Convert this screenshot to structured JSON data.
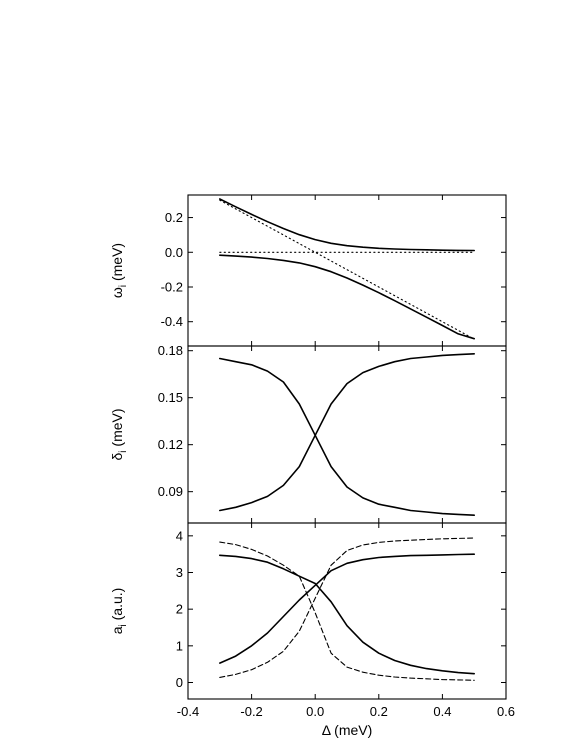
{
  "chart_data": [
    {
      "type": "line",
      "panel": "top",
      "title": "",
      "ylabel": {
        "main": "ω",
        "sub": "i",
        "rest": " (meV)"
      },
      "xlim": [
        -0.4,
        0.6
      ],
      "ylim": [
        -0.54,
        0.33
      ],
      "yticks": [
        0.2,
        0.0,
        -0.2,
        -0.4
      ],
      "ytick_labels": [
        "0.2",
        "0.0",
        "-0.2",
        "-0.4"
      ],
      "series": [
        {
          "style": "solid",
          "x": [
            -0.3,
            -0.25,
            -0.2,
            -0.15,
            -0.1,
            -0.05,
            0,
            0.05,
            0.1,
            0.15,
            0.2,
            0.25,
            0.3,
            0.35,
            0.4,
            0.45,
            0.5
          ],
          "y": [
            0.307,
            0.262,
            0.218,
            0.176,
            0.137,
            0.101,
            0.073,
            0.052,
            0.038,
            0.029,
            0.023,
            0.019,
            0.016,
            0.014,
            0.012,
            0.011,
            0.01
          ]
        },
        {
          "style": "solid",
          "x": [
            -0.3,
            -0.25,
            -0.2,
            -0.15,
            -0.1,
            -0.05,
            0,
            0.05,
            0.1,
            0.15,
            0.2,
            0.25,
            0.3,
            0.35,
            0.4,
            0.45,
            0.5
          ],
          "y": [
            -0.017,
            -0.022,
            -0.028,
            -0.036,
            -0.047,
            -0.061,
            -0.083,
            -0.112,
            -0.148,
            -0.189,
            -0.233,
            -0.279,
            -0.326,
            -0.374,
            -0.422,
            -0.47,
            -0.498
          ]
        },
        {
          "style": "dotted",
          "x": [
            -0.3,
            0.5
          ],
          "y": [
            0.3,
            -0.5
          ]
        },
        {
          "style": "dotted",
          "x": [
            -0.3,
            0.5
          ],
          "y": [
            0.0,
            0.0
          ]
        }
      ]
    },
    {
      "type": "line",
      "panel": "middle",
      "title": "",
      "ylabel": {
        "main": "δ",
        "sub": "i",
        "rest": " (meV)"
      },
      "xlim": [
        -0.4,
        0.6
      ],
      "ylim": [
        0.07,
        0.183
      ],
      "yticks": [
        0.18,
        0.15,
        0.12,
        0.09
      ],
      "ytick_labels": [
        "0.18",
        "0.15",
        "0.12",
        "0.09"
      ],
      "series": [
        {
          "style": "solid",
          "x": [
            -0.3,
            -0.25,
            -0.2,
            -0.15,
            -0.1,
            -0.05,
            0,
            0.05,
            0.1,
            0.15,
            0.2,
            0.25,
            0.3,
            0.35,
            0.4,
            0.45,
            0.5
          ],
          "y": [
            0.175,
            0.173,
            0.171,
            0.167,
            0.16,
            0.146,
            0.126,
            0.106,
            0.093,
            0.086,
            0.082,
            0.08,
            0.078,
            0.077,
            0.076,
            0.0755,
            0.075
          ]
        },
        {
          "style": "solid",
          "x": [
            -0.3,
            -0.25,
            -0.2,
            -0.15,
            -0.1,
            -0.05,
            0,
            0.05,
            0.1,
            0.15,
            0.2,
            0.25,
            0.3,
            0.35,
            0.4,
            0.45,
            0.5
          ],
          "y": [
            0.078,
            0.08,
            0.083,
            0.087,
            0.094,
            0.106,
            0.126,
            0.146,
            0.159,
            0.166,
            0.17,
            0.173,
            0.175,
            0.176,
            0.177,
            0.1775,
            0.178
          ]
        }
      ]
    },
    {
      "type": "line",
      "panel": "bottom",
      "title": "",
      "ylabel": {
        "main": "a",
        "sub": "i",
        "rest": " (a.u.)"
      },
      "xlabel": "Δ (meV)",
      "xlim": [
        -0.4,
        0.6
      ],
      "ylim": [
        -0.45,
        4.35
      ],
      "xticks": [
        -0.4,
        -0.2,
        0.0,
        0.2,
        0.4,
        0.6
      ],
      "xtick_labels": [
        "-0.4",
        "-0.2",
        "0.0",
        "0.2",
        "0.4",
        "0.6"
      ],
      "yticks": [
        4,
        3,
        2,
        1,
        0
      ],
      "ytick_labels": [
        "4",
        "3",
        "2",
        "1",
        "0"
      ],
      "series": [
        {
          "style": "solid",
          "x": [
            -0.3,
            -0.25,
            -0.2,
            -0.15,
            -0.1,
            -0.05,
            0,
            0.05,
            0.1,
            0.15,
            0.2,
            0.25,
            0.3,
            0.35,
            0.4,
            0.45,
            0.5
          ],
          "y": [
            3.47,
            3.44,
            3.38,
            3.28,
            3.1,
            2.9,
            2.7,
            2.2,
            1.55,
            1.1,
            0.8,
            0.6,
            0.47,
            0.38,
            0.32,
            0.27,
            0.24
          ]
        },
        {
          "style": "solid",
          "x": [
            -0.3,
            -0.25,
            -0.2,
            -0.15,
            -0.1,
            -0.05,
            0,
            0.05,
            0.1,
            0.15,
            0.2,
            0.25,
            0.3,
            0.35,
            0.4,
            0.45,
            0.5
          ],
          "y": [
            0.53,
            0.72,
            1.0,
            1.35,
            1.8,
            2.25,
            2.65,
            3.05,
            3.25,
            3.35,
            3.41,
            3.44,
            3.46,
            3.47,
            3.48,
            3.49,
            3.5
          ]
        },
        {
          "style": "dashed",
          "x": [
            -0.3,
            -0.25,
            -0.2,
            -0.15,
            -0.1,
            -0.05,
            0,
            0.05,
            0.1,
            0.15,
            0.2,
            0.25,
            0.3,
            0.35,
            0.4,
            0.45,
            0.5
          ],
          "y": [
            3.83,
            3.76,
            3.63,
            3.45,
            3.2,
            2.9,
            1.9,
            0.8,
            0.42,
            0.28,
            0.2,
            0.15,
            0.12,
            0.1,
            0.08,
            0.07,
            0.06
          ]
        },
        {
          "style": "dashed",
          "x": [
            -0.3,
            -0.25,
            -0.2,
            -0.15,
            -0.1,
            -0.05,
            0,
            0.05,
            0.1,
            0.15,
            0.2,
            0.25,
            0.3,
            0.35,
            0.4,
            0.45,
            0.5
          ],
          "y": [
            0.14,
            0.22,
            0.35,
            0.55,
            0.85,
            1.4,
            2.3,
            3.2,
            3.6,
            3.75,
            3.82,
            3.86,
            3.88,
            3.9,
            3.92,
            3.93,
            3.94
          ]
        }
      ]
    }
  ]
}
